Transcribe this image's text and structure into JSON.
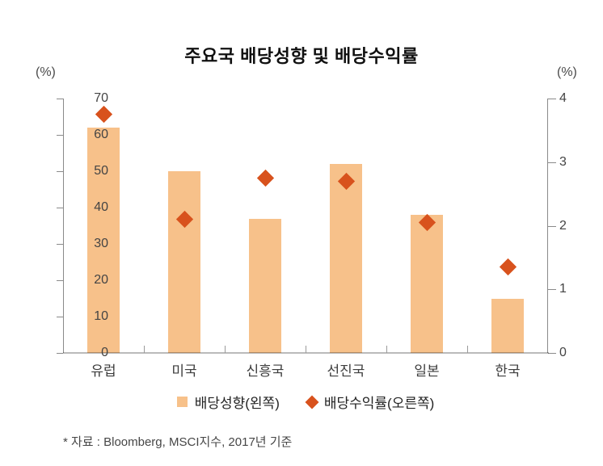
{
  "title": "주요국 배당성향 및 배당수익률",
  "left_axis": {
    "unit_label": "(%)",
    "ticks": [
      "70",
      "60",
      "50",
      "40",
      "30",
      "20",
      "10",
      "0"
    ],
    "min": 0,
    "max": 70
  },
  "right_axis": {
    "unit_label": "(%)",
    "ticks": [
      "4",
      "3",
      "2",
      "1",
      "0"
    ],
    "min": 0,
    "max": 4
  },
  "legend": {
    "items": [
      {
        "label": "배당성향(왼쪽)",
        "marker": "square",
        "color": "#f7c18a"
      },
      {
        "label": "배당수익률(오른쪽)",
        "marker": "diamond",
        "color": "#d8521d"
      }
    ]
  },
  "footnote": "* 자료 : Bloomberg, MSCI지수, 2017년 기준",
  "colors": {
    "bar": "#f7c18a",
    "diamond": "#d8521d",
    "axis": "#8a8a8a",
    "title": "#101010"
  },
  "chart_data": {
    "type": "bar",
    "subtype": "bar-with-diamond-markers-dual-axis",
    "title": "주요국 배당성향 및 배당수익률",
    "categories": [
      "유럽",
      "미국",
      "신흥국",
      "선진국",
      "일본",
      "한국"
    ],
    "series": [
      {
        "name": "배당성향(왼쪽)",
        "type": "bar",
        "axis": "left",
        "values": [
          62,
          50,
          37,
          52,
          38,
          15
        ]
      },
      {
        "name": "배당수익률(오른쪽)",
        "type": "scatter",
        "marker": "diamond",
        "axis": "right",
        "values": [
          3.75,
          2.1,
          2.75,
          2.7,
          2.05,
          1.35
        ]
      }
    ],
    "xlabel": "",
    "ylabel_left": "(%)",
    "ylabel_right": "(%)",
    "left_ylim": [
      0,
      70
    ],
    "right_ylim": [
      0,
      4
    ],
    "grid": false,
    "legend_position": "bottom-center"
  }
}
